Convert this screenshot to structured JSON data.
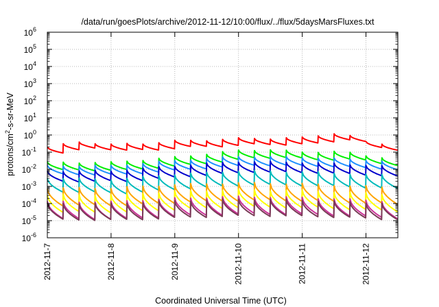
{
  "chart_data": {
    "type": "line",
    "title": "/data/run/goesPlots/archive/2012-11-12/10:00/flux/../flux/5daysMarsFluxes.txt",
    "xlabel": "Coordinated Universal Time (UTC)",
    "ylabel_parts": [
      "protons/cm",
      "2",
      "-s-sr-MeV"
    ],
    "y_scale": "log",
    "ylim": [
      1e-06,
      1000000.0
    ],
    "y_ticks": [
      {
        "base": "10",
        "exp": "-6",
        "value": -6
      },
      {
        "base": "10",
        "exp": "-5",
        "value": -5
      },
      {
        "base": "10",
        "exp": "-4",
        "value": -4
      },
      {
        "base": "10",
        "exp": "-3",
        "value": -3
      },
      {
        "base": "10",
        "exp": "-2",
        "value": -2
      },
      {
        "base": "10",
        "exp": "-1",
        "value": -1
      },
      {
        "base": "10",
        "exp": "0",
        "value": 0
      },
      {
        "base": "10",
        "exp": "1",
        "value": 1
      },
      {
        "base": "10",
        "exp": "2",
        "value": 2
      },
      {
        "base": "10",
        "exp": "3",
        "value": 3
      },
      {
        "base": "10",
        "exp": "4",
        "value": 4
      },
      {
        "base": "10",
        "exp": "5",
        "value": 5
      },
      {
        "base": "10",
        "exp": "6",
        "value": 6
      }
    ],
    "xlim": [
      "2012-11-07",
      "2012-11-12 12:00"
    ],
    "x_ticks": [
      {
        "label": "2012-11-7",
        "day": 0
      },
      {
        "label": "2012-11-8",
        "day": 1
      },
      {
        "label": "2012-11-9",
        "day": 2
      },
      {
        "label": "2012-11-10",
        "day": 3
      },
      {
        "label": "2012-11-11",
        "day": 4
      },
      {
        "label": "2012-11-12",
        "day": 5
      }
    ],
    "grid": true,
    "legend": "none",
    "series": [
      {
        "color": "#ff0000",
        "period_hours": 6,
        "peak_log": [
          [
            0.0,
            -0.7
          ],
          [
            0.5,
            -0.4
          ],
          [
            1.0,
            -0.55
          ],
          [
            1.5,
            -0.5
          ],
          [
            2.0,
            -0.35
          ],
          [
            2.5,
            -0.3
          ],
          [
            3.0,
            -0.2
          ],
          [
            3.5,
            -0.2
          ],
          [
            4.0,
            -0.15
          ],
          [
            4.6,
            0.15
          ],
          [
            5.0,
            -0.4
          ],
          [
            5.5,
            -0.6
          ]
        ],
        "drop": 0.35
      },
      {
        "color": "#00ee00",
        "period_hours": 6,
        "peak_log": [
          [
            0.0,
            -1.6
          ],
          [
            1.0,
            -1.6
          ],
          [
            2.0,
            -1.3
          ],
          [
            3.0,
            -0.9
          ],
          [
            3.5,
            -0.85
          ],
          [
            4.0,
            -1.0
          ],
          [
            4.6,
            -0.95
          ],
          [
            5.0,
            -1.2
          ],
          [
            5.5,
            -1.4
          ]
        ],
        "drop": 0.45
      },
      {
        "color": "#1e90ff",
        "period_hours": 6,
        "peak_log": [
          [
            0.0,
            -1.8
          ],
          [
            1.0,
            -1.8
          ],
          [
            2.0,
            -1.5
          ],
          [
            3.0,
            -1.25
          ],
          [
            4.0,
            -1.3
          ],
          [
            5.0,
            -1.45
          ],
          [
            5.5,
            -1.6
          ]
        ],
        "drop": 0.5
      },
      {
        "color": "#0000cc",
        "period_hours": 6,
        "peak_log": [
          [
            0.0,
            -2.1
          ],
          [
            1.0,
            -2.1
          ],
          [
            2.0,
            -1.8
          ],
          [
            3.0,
            -1.55
          ],
          [
            4.0,
            -1.6
          ],
          [
            5.0,
            -1.75
          ],
          [
            5.5,
            -1.9
          ]
        ],
        "drop": 0.6
      },
      {
        "color": "#00bbbb",
        "period_hours": 6,
        "peak_log": [
          [
            0.0,
            -2.5
          ],
          [
            1.0,
            -2.6
          ],
          [
            2.0,
            -2.3
          ],
          [
            3.0,
            -2.1
          ],
          [
            4.0,
            -2.15
          ],
          [
            5.0,
            -2.3
          ],
          [
            5.5,
            -2.4
          ]
        ],
        "drop": 0.8
      },
      {
        "color": "#ffa500",
        "period_hours": 6,
        "peak_log": [
          [
            0.0,
            -3.1
          ],
          [
            1.0,
            -3.1
          ],
          [
            2.0,
            -2.9
          ],
          [
            3.0,
            -2.8
          ],
          [
            4.0,
            -2.85
          ],
          [
            5.0,
            -3.0
          ],
          [
            5.5,
            -3.1
          ]
        ],
        "drop": 1.0
      },
      {
        "color": "#ffff00",
        "period_hours": 6,
        "peak_log": [
          [
            0.0,
            -3.5
          ],
          [
            1.0,
            -3.5
          ],
          [
            2.0,
            -3.3
          ],
          [
            3.0,
            -3.2
          ],
          [
            4.0,
            -3.25
          ],
          [
            5.0,
            -3.4
          ],
          [
            5.5,
            -3.5
          ]
        ],
        "drop": 1.0
      },
      {
        "color": "#cc3399",
        "period_hours": 6,
        "peak_log": [
          [
            0.0,
            -3.9
          ],
          [
            1.0,
            -3.9
          ],
          [
            2.0,
            -3.7
          ],
          [
            3.0,
            -3.6
          ],
          [
            4.0,
            -3.65
          ],
          [
            5.0,
            -3.8
          ],
          [
            5.5,
            -3.9
          ]
        ],
        "drop": 1.0
      },
      {
        "color": "#7a3b57",
        "period_hours": 6,
        "peak_log": [
          [
            0.0,
            -4.0
          ],
          [
            1.0,
            -4.0
          ],
          [
            2.0,
            -3.85
          ],
          [
            3.0,
            -3.75
          ],
          [
            4.0,
            -3.8
          ],
          [
            5.0,
            -3.95
          ],
          [
            5.5,
            -4.0
          ]
        ],
        "drop": 0.95
      }
    ]
  }
}
